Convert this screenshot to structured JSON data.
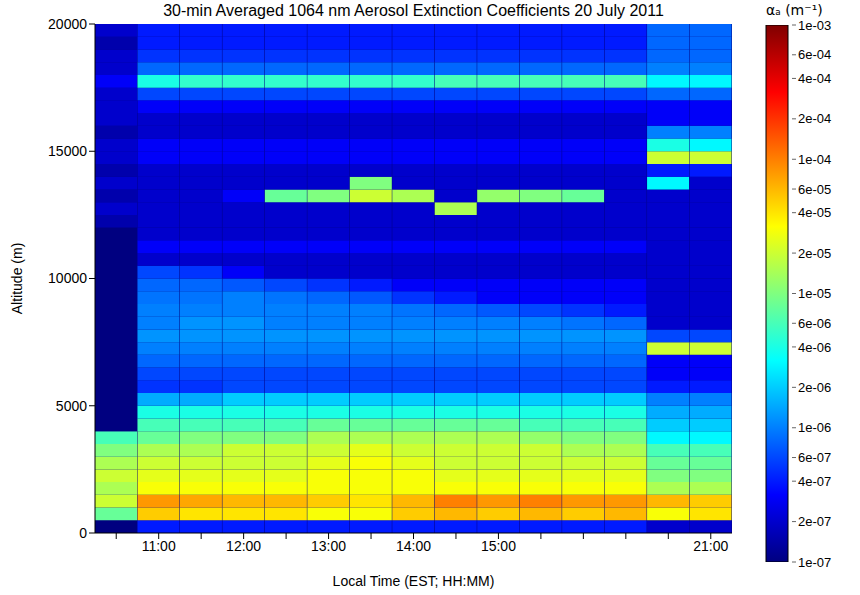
{
  "chart_data": {
    "type": "heatmap",
    "title": "30-min Averaged 1064 nm Aerosol Extinction Coefficients 20 July 2011",
    "x_label": "Local Time (EST; HH:MM)",
    "y_label": "Altitude (m)",
    "categories": [
      null,
      "11:00",
      null,
      "12:00",
      null,
      "13:00",
      null,
      "14:00",
      null,
      "15:00",
      null,
      null,
      null,
      null,
      "21:00"
    ],
    "y_bins": [
      0,
      500,
      1000,
      1500,
      2000,
      2500,
      3000,
      3500,
      4000,
      4500,
      5000,
      5500,
      6000,
      6500,
      7000,
      7500,
      8000,
      8500,
      9000,
      9500,
      10000,
      10500,
      11000,
      11500,
      12000,
      12500,
      13000,
      13500,
      14000,
      14500,
      15000,
      15500,
      16000,
      16500,
      17000,
      17500,
      18000,
      18500,
      19000,
      19500,
      20000
    ],
    "ylim": [
      0,
      20000
    ],
    "yticks": [
      0,
      5000,
      10000,
      15000,
      20000
    ],
    "grid": false,
    "color": "jet",
    "values": [
      [
        1e-07,
        8e-06,
        2e-05,
        1.5e-05,
        2e-05,
        1.5e-05,
        1e-05,
        6e-06,
        1e-07,
        1e-07,
        1e-07,
        1e-07,
        1e-07,
        1e-07,
        1e-07,
        1e-07,
        1e-07,
        1e-07,
        1e-07,
        1e-07,
        1e-07,
        1e-07,
        1e-07,
        1e-07,
        1.5e-07,
        2e-07,
        1.5e-07,
        2e-07,
        1.5e-07,
        2e-07,
        2e-07,
        1.5e-07,
        2e-07,
        2e-07,
        2e-07,
        3e-07,
        2e-07,
        2e-07,
        1.5e-07,
        2e-07
      ],
      [
        4e-07,
        5e-05,
        8e-05,
        3e-05,
        2.5e-05,
        2e-05,
        1.5e-05,
        8e-06,
        6e-06,
        4e-06,
        1.5e-06,
        5e-07,
        6e-07,
        8e-07,
        1e-06,
        1.2e-06,
        1e-06,
        1e-06,
        9e-07,
        8e-07,
        6e-07,
        2e-07,
        3e-07,
        2e-07,
        2e-07,
        2e-07,
        2e-07,
        2e-07,
        2e-07,
        3e-07,
        3e-07,
        2e-07,
        2e-07,
        3e-07,
        6e-07,
        4e-06,
        8e-07,
        5e-07,
        4e-07,
        4e-07
      ],
      [
        4e-07,
        4e-05,
        7e-05,
        3e-05,
        2.5e-05,
        2e-05,
        1.5e-05,
        1e-05,
        6e-06,
        4e-06,
        1.5e-06,
        5e-07,
        6e-07,
        8e-07,
        1e-06,
        1.2e-06,
        1.2e-06,
        1e-06,
        9e-07,
        8e-07,
        5e-07,
        2e-07,
        3e-07,
        2e-07,
        2e-07,
        2e-07,
        2e-07,
        2e-07,
        2e-07,
        3e-07,
        3e-07,
        2e-07,
        2e-07,
        3e-07,
        6e-07,
        5e-06,
        8e-07,
        5e-07,
        4e-07,
        4e-07
      ],
      [
        4e-07,
        4e-05,
        6e-05,
        3e-05,
        2.5e-05,
        2e-05,
        2e-05,
        1e-05,
        6e-06,
        4e-06,
        2e-06,
        6e-07,
        6e-07,
        8e-07,
        1e-06,
        1.2e-06,
        1.2e-06,
        1e-06,
        1e-06,
        7e-07,
        3e-07,
        2e-07,
        3e-07,
        2e-07,
        2e-07,
        2e-07,
        3e-07,
        2e-07,
        2e-07,
        3e-07,
        3e-07,
        2e-07,
        2e-07,
        3e-07,
        6e-07,
        5e-06,
        8e-07,
        5e-07,
        4e-07,
        4e-07
      ],
      [
        4e-07,
        4e-05,
        6e-05,
        3e-05,
        2.5e-05,
        2e-05,
        2e-05,
        1e-05,
        6e-06,
        4e-06,
        2e-06,
        6e-07,
        6e-07,
        8e-07,
        1e-06,
        1.2e-06,
        1e-06,
        1e-06,
        9e-07,
        6e-07,
        2e-07,
        2e-07,
        3e-07,
        2e-07,
        2e-07,
        2e-07,
        8e-06,
        2e-07,
        2e-07,
        3e-07,
        3e-07,
        2e-07,
        2e-07,
        3e-07,
        6e-07,
        5e-06,
        8e-07,
        5e-07,
        4e-07,
        4e-07
      ],
      [
        4e-07,
        3e-05,
        5e-05,
        3e-05,
        3e-05,
        2.5e-05,
        2e-05,
        1.5e-05,
        8e-06,
        4e-06,
        2e-06,
        6e-07,
        6e-07,
        8e-07,
        1e-06,
        1.2e-06,
        1e-06,
        1e-06,
        8e-07,
        5e-07,
        2e-07,
        2e-07,
        3e-07,
        2e-07,
        2e-07,
        2e-07,
        1e-05,
        2e-07,
        2e-07,
        3e-07,
        3e-07,
        2e-07,
        2e-07,
        3e-07,
        6e-07,
        5e-06,
        8e-07,
        5e-07,
        4e-07,
        4e-07
      ],
      [
        4e-07,
        3e-05,
        4e-05,
        3e-05,
        3e-05,
        3e-05,
        2.5e-05,
        1.5e-05,
        8e-06,
        4e-06,
        2e-06,
        6e-07,
        6e-07,
        8e-07,
        1e-06,
        1.2e-06,
        1e-06,
        1e-06,
        7e-07,
        4e-07,
        2e-07,
        2e-07,
        3e-07,
        2e-07,
        2e-07,
        2e-07,
        2e-05,
        1e-05,
        2e-07,
        3e-07,
        3e-07,
        2e-07,
        2e-07,
        3e-07,
        6e-07,
        5e-06,
        8e-07,
        5e-07,
        4e-07,
        4e-07
      ],
      [
        4e-07,
        5e-05,
        6e-05,
        3e-05,
        3e-05,
        2.5e-05,
        2e-05,
        1.5e-05,
        8e-06,
        4e-06,
        2e-06,
        6e-07,
        6e-07,
        8e-07,
        1e-06,
        1.2e-06,
        1e-06,
        9e-07,
        5e-07,
        3e-07,
        2e-07,
        2e-07,
        3e-07,
        2e-07,
        2e-07,
        2e-07,
        1.5e-05,
        2e-07,
        2e-07,
        3e-07,
        3e-07,
        2e-07,
        2e-07,
        3e-07,
        6e-07,
        5e-06,
        8e-07,
        5e-07,
        4e-07,
        4e-07
      ],
      [
        4e-07,
        6e-05,
        0.0001,
        3e-05,
        2.5e-05,
        2e-05,
        2e-05,
        1.5e-05,
        8e-06,
        4e-06,
        2e-06,
        6e-07,
        6e-07,
        8e-07,
        1e-06,
        1.2e-06,
        1e-06,
        8e-07,
        4e-07,
        3e-07,
        2e-07,
        2e-07,
        3e-07,
        2e-07,
        2e-07,
        1.5e-05,
        2e-07,
        2e-07,
        2e-07,
        3e-07,
        3e-07,
        2e-07,
        2e-07,
        3e-07,
        6e-07,
        6e-06,
        8e-07,
        5e-07,
        4e-07,
        4e-07
      ],
      [
        4e-07,
        5e-05,
        8e-05,
        3e-05,
        2.5e-05,
        2e-05,
        2e-05,
        1.5e-05,
        8e-06,
        4e-06,
        2e-06,
        6e-07,
        6e-07,
        8e-07,
        1e-06,
        1.2e-06,
        1e-06,
        7e-07,
        3e-07,
        3e-07,
        2e-07,
        2e-07,
        3e-07,
        2e-07,
        2e-07,
        2e-07,
        1.2e-05,
        2e-07,
        2e-07,
        3e-07,
        3e-07,
        2e-07,
        2e-07,
        3e-07,
        6e-07,
        6e-06,
        8e-07,
        5e-07,
        4e-07,
        4e-07
      ],
      [
        4e-07,
        6e-05,
        0.0001,
        3e-05,
        2.5e-05,
        2e-05,
        2e-05,
        1.2e-05,
        6e-06,
        4e-06,
        2e-06,
        6e-07,
        6e-07,
        8e-07,
        1e-06,
        1.2e-06,
        1e-06,
        6e-07,
        3e-07,
        3e-07,
        2e-07,
        2e-07,
        3e-07,
        2e-07,
        2e-07,
        2e-07,
        1e-05,
        2e-07,
        2e-07,
        3e-07,
        3e-07,
        2e-07,
        2e-07,
        3e-07,
        6e-07,
        6e-06,
        8e-07,
        5e-07,
        4e-07,
        4e-07
      ],
      [
        4e-07,
        5e-05,
        8e-05,
        3e-05,
        2.5e-05,
        2e-05,
        1.5e-05,
        1e-05,
        6e-06,
        4e-06,
        2e-06,
        6e-07,
        6e-07,
        8e-07,
        1e-06,
        1.2e-06,
        9e-07,
        5e-07,
        3e-07,
        3e-07,
        2e-07,
        2e-07,
        3e-07,
        2e-07,
        2e-07,
        2e-07,
        8e-06,
        2e-07,
        2e-07,
        3e-07,
        3e-07,
        2e-07,
        2e-07,
        3e-07,
        6e-07,
        6e-06,
        8e-07,
        5e-07,
        4e-07,
        4e-07
      ],
      [
        4e-07,
        6e-05,
        8e-05,
        3e-05,
        2.5e-05,
        2e-05,
        1.5e-05,
        1e-05,
        6e-06,
        4e-06,
        2e-06,
        6e-07,
        6e-07,
        8e-07,
        1e-06,
        1.2e-06,
        8e-07,
        4e-07,
        3e-07,
        3e-07,
        2e-07,
        2e-07,
        3e-07,
        2e-07,
        2e-07,
        2e-07,
        2e-07,
        2e-07,
        2e-07,
        3e-07,
        3e-07,
        2e-07,
        2e-07,
        3e-07,
        6e-07,
        6e-06,
        8e-07,
        5e-07,
        4e-07,
        4e-07
      ],
      [
        2e-07,
        3e-05,
        6e-05,
        1.5e-05,
        1e-05,
        8e-06,
        6e-06,
        3e-06,
        2e-06,
        1.5e-06,
        1e-06,
        4e-07,
        3e-07,
        3e-07,
        2e-05,
        6e-07,
        2e-07,
        2e-07,
        2e-07,
        2e-07,
        2e-07,
        2e-07,
        2e-07,
        2e-07,
        2e-07,
        2e-07,
        2e-07,
        3e-06,
        4e-07,
        2e-05,
        4e-06,
        1e-06,
        3e-07,
        3e-07,
        8e-07,
        3e-06,
        1e-06,
        8e-07,
        8e-07,
        8e-07
      ],
      [
        2e-07,
        4e-05,
        5e-05,
        1.5e-05,
        1e-05,
        8e-06,
        6e-06,
        3e-06,
        2e-06,
        1.5e-06,
        1e-06,
        4e-07,
        3e-07,
        3e-07,
        2e-05,
        6e-07,
        2e-07,
        2e-07,
        2e-07,
        2e-07,
        2e-07,
        2e-07,
        2e-07,
        2e-07,
        2e-07,
        2e-07,
        2e-07,
        2e-07,
        4e-07,
        2e-05,
        3e-06,
        1e-06,
        3e-07,
        3e-07,
        8e-07,
        3e-06,
        1e-06,
        8e-07,
        8e-07,
        8e-07
      ]
    ],
    "colorbar": {
      "label": "αₐ (m⁻¹)",
      "range": [
        1e-07,
        0.001
      ],
      "log": true,
      "ticks": [
        {
          "value": 0.001,
          "label": "1e-03"
        },
        {
          "value": 0.0006,
          "label": "6e-04"
        },
        {
          "value": 0.0004,
          "label": "4e-04"
        },
        {
          "value": 0.0002,
          "label": "2e-04"
        },
        {
          "value": 0.0001,
          "label": "1e-04"
        },
        {
          "value": 6e-05,
          "label": "6e-05"
        },
        {
          "value": 4e-05,
          "label": "4e-05"
        },
        {
          "value": 2e-05,
          "label": "2e-05"
        },
        {
          "value": 1e-05,
          "label": "1e-05"
        },
        {
          "value": 6e-06,
          "label": "6e-06"
        },
        {
          "value": 4e-06,
          "label": "4e-06"
        },
        {
          "value": 2e-06,
          "label": "2e-06"
        },
        {
          "value": 1e-06,
          "label": "1e-06"
        },
        {
          "value": 6e-07,
          "label": "6e-07"
        },
        {
          "value": 4e-07,
          "label": "4e-07"
        },
        {
          "value": 2e-07,
          "label": "2e-07"
        },
        {
          "value": 1e-07,
          "label": "1e-07"
        }
      ]
    }
  }
}
